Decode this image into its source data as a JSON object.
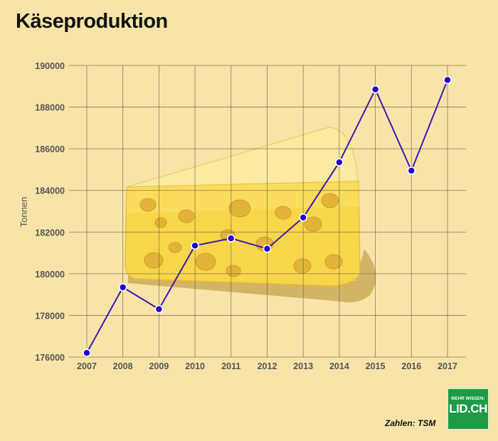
{
  "page": {
    "title": "Käseproduktion",
    "source": "Zahlen: TSM",
    "logo_small": "MEHR WISSEN:",
    "logo_big": "LID.CH"
  },
  "colors": {
    "background": "#f8e4a8",
    "line": "#3b18b8",
    "marker_fill": "#2200cc",
    "grid": "#6b5a3e",
    "cheese": "#f7d850"
  },
  "illustration": "cheese-wedge",
  "chart_data": {
    "type": "line",
    "title": "Käseproduktion",
    "xlabel": "",
    "ylabel": "Tonnen",
    "categories": [
      "2007",
      "2008",
      "2009",
      "2010",
      "2011",
      "2012",
      "2013",
      "2014",
      "2015",
      "2016",
      "2017"
    ],
    "values": [
      176200,
      179350,
      178300,
      181350,
      181700,
      181200,
      182700,
      185350,
      188850,
      184950,
      189300
    ],
    "ylim": [
      176000,
      190000
    ],
    "yticks": [
      176000,
      178000,
      180000,
      182000,
      184000,
      186000,
      188000,
      190000
    ],
    "grid": true,
    "legend": "none"
  }
}
